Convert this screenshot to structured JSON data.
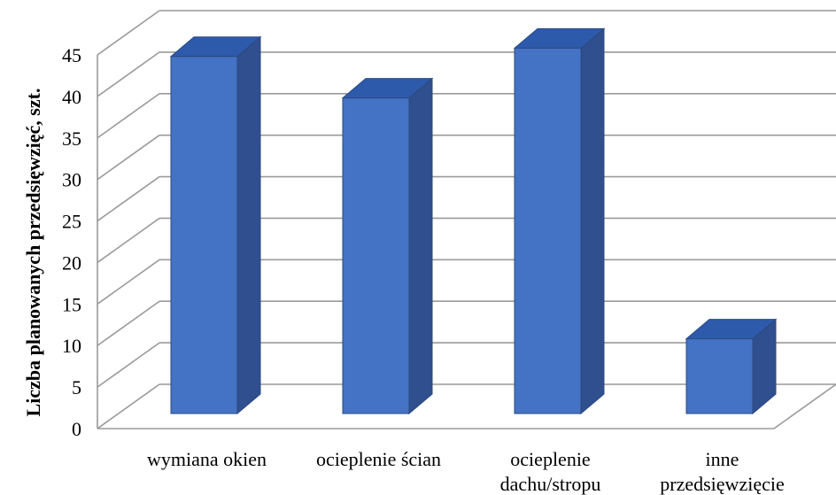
{
  "chart_data": {
    "type": "bar",
    "style": "3d-column",
    "title": "",
    "xlabel": "",
    "ylabel": "Liczba planowanych przedsięwzięć, szt.",
    "ylim": [
      0,
      45
    ],
    "yticks": [
      "0",
      "5",
      "10",
      "15",
      "20",
      "25",
      "30",
      "35",
      "40",
      "45"
    ],
    "categories": [
      [
        "wymiana okien"
      ],
      [
        "ocieplenie ścian"
      ],
      [
        "ocieplenie",
        "dachu/stropu"
      ],
      [
        "inne",
        "przedsięwzięcie"
      ]
    ],
    "values": [
      43,
      38,
      44,
      9
    ],
    "grid": true,
    "legend": "none",
    "colors": {
      "bar_front": "#4472C4",
      "bar_side": "#2F4F8F",
      "bar_top": "#2E5AAC",
      "bar_edge": "#2B4A80",
      "grid": "#9a9a9a",
      "text": "#000000"
    }
  }
}
